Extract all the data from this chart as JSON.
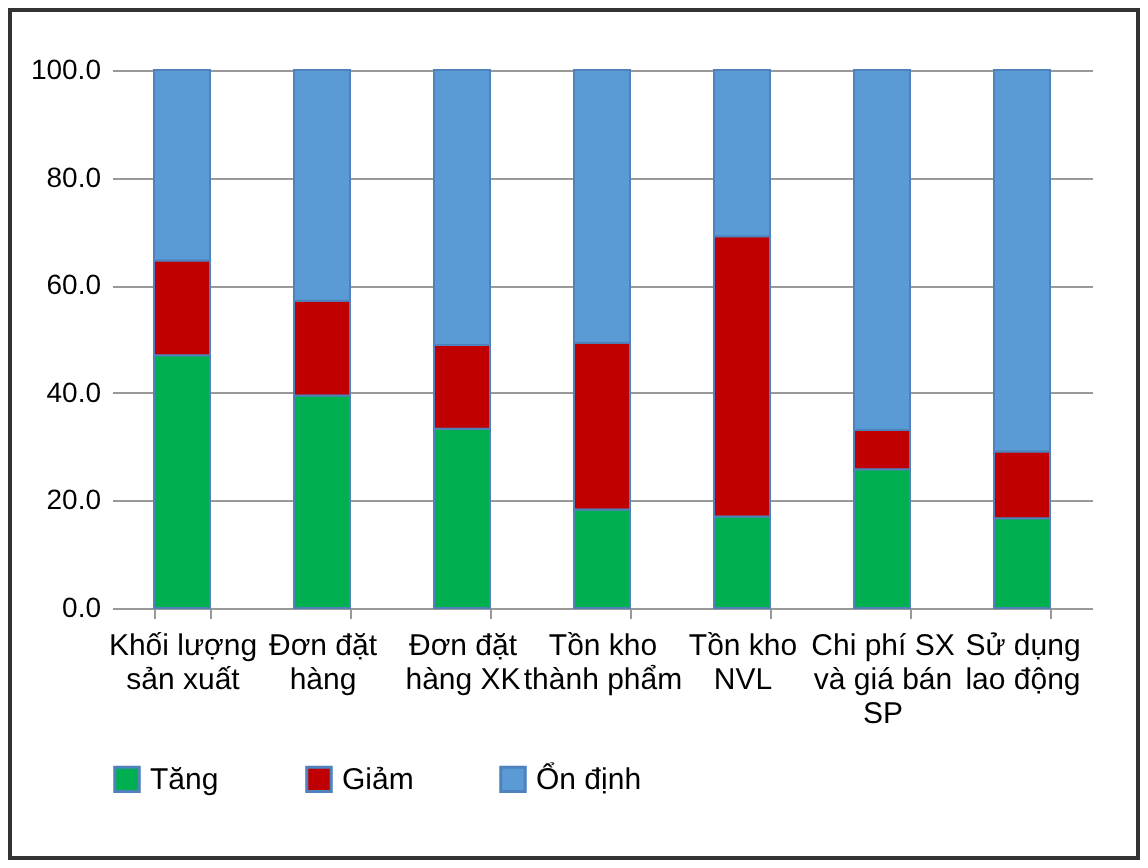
{
  "chart_data": {
    "type": "bar",
    "stacked": true,
    "categories": [
      "Khối lượng sản xuất",
      "Đơn đặt hàng",
      "Đơn đặt hàng XK",
      "Tồn kho thành phẩm",
      "Tồn kho NVL",
      "Chi phí SX và giá bán SP",
      "Sử dụng lao động"
    ],
    "series": [
      {
        "name": "Tăng",
        "color": "#00b050",
        "values": [
          47.0,
          39.5,
          33.3,
          18.3,
          17.0,
          25.8,
          16.7
        ]
      },
      {
        "name": "Giảm",
        "color": "#c00000",
        "values": [
          17.6,
          17.6,
          15.6,
          31.0,
          52.1,
          7.3,
          12.4
        ]
      },
      {
        "name": "Ổn định",
        "color": "#5b9bd5",
        "values": [
          35.4,
          42.9,
          51.1,
          50.7,
          30.9,
          66.9,
          70.9
        ]
      }
    ],
    "ylim": [
      0,
      100
    ],
    "yticks": [
      {
        "value": 0,
        "label": "0.0"
      },
      {
        "value": 20,
        "label": "20.0"
      },
      {
        "value": 40,
        "label": "40.0"
      },
      {
        "value": 60,
        "label": "60.0"
      },
      {
        "value": 80,
        "label": "80.0"
      },
      {
        "value": 100,
        "label": "100.0"
      }
    ],
    "grid": "y",
    "legend": "bottom"
  }
}
